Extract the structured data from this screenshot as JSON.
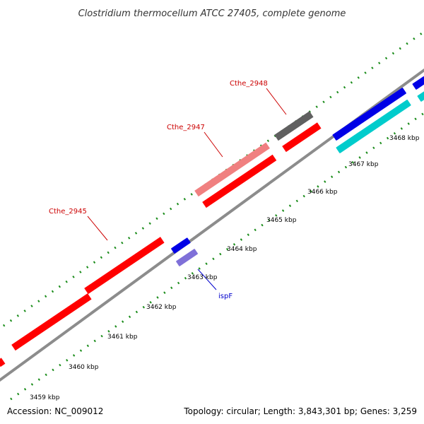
{
  "title": "Clostridium thermocellum ATCC 27405, complete genome",
  "footer": {
    "accession": "Accession: NC_009012",
    "summary": "Topology: circular; Length: 3,843,301 bp; Genes: 3,259"
  },
  "scale_labels": [
    "3459 kbp",
    "3460 kbp",
    "3461 kbp",
    "3462 kbp",
    "3463 kbp",
    "3464 kbp",
    "3465 kbp",
    "3466 kbp",
    "3467 kbp",
    "3468 kbp"
  ],
  "genes": [
    {
      "label": "Cthe_2945",
      "color": "#ff0000",
      "strand": "forward"
    },
    {
      "label": "Cthe_2947",
      "color": "#ff0000",
      "strand": "forward"
    },
    {
      "label": "Cthe_2948",
      "color": "#ff0000",
      "strand": "forward"
    },
    {
      "label": "ispF",
      "color": "#0000cc",
      "strand": "reverse"
    }
  ],
  "colors": {
    "backbone": "#8c8c8c",
    "tick": "#1a8c1a",
    "forward_cds": "#ff0000",
    "forward_cds_light": "#f08080",
    "other_feature": "#606060",
    "reverse_cds": "#0000e6",
    "reverse_cds_light": "#7f70d8",
    "cyan_feature": "#00cccc",
    "label_forward": "#cc0000",
    "label_reverse": "#0000cc"
  }
}
